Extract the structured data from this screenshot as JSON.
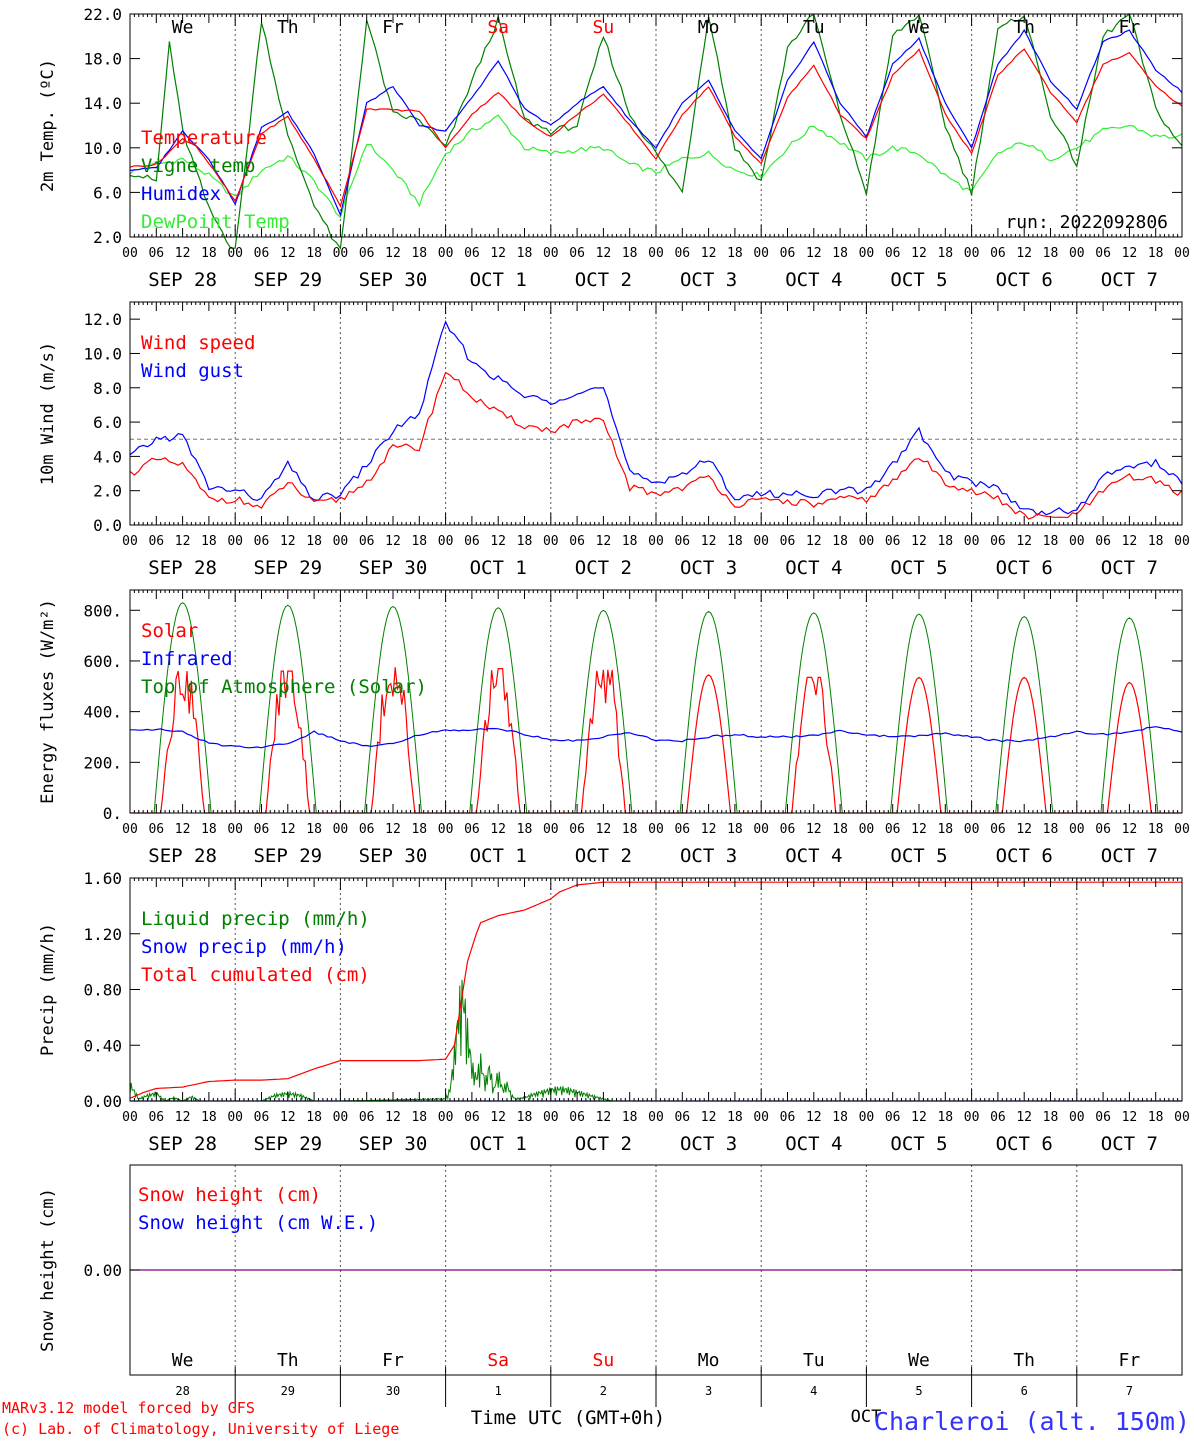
{
  "footer": {
    "model": "MARv3.12 model forced by GFS",
    "copyright": "(c) Lab. of Climatology, University of Liege",
    "xlabel": "Time UTC (GMT+0h)",
    "month": "OCT",
    "station": "Charleroi (alt. 150m)"
  },
  "run_label": "run: 2022092806",
  "days": [
    {
      "dow": "We",
      "date": "SEP 28",
      "num": "28",
      "weekend": false
    },
    {
      "dow": "Th",
      "date": "SEP 29",
      "num": "29",
      "weekend": false
    },
    {
      "dow": "Fr",
      "date": "SEP 30",
      "num": "30",
      "weekend": false
    },
    {
      "dow": "Sa",
      "date": "OCT 1",
      "num": "1",
      "weekend": true
    },
    {
      "dow": "Su",
      "date": "OCT 2",
      "num": "2",
      "weekend": true
    },
    {
      "dow": "Mo",
      "date": "OCT 3",
      "num": "3",
      "weekend": false
    },
    {
      "dow": "Tu",
      "date": "OCT 4",
      "num": "4",
      "weekend": false
    },
    {
      "dow": "We",
      "date": "OCT 5",
      "num": "5",
      "weekend": false
    },
    {
      "dow": "Th",
      "date": "OCT 6",
      "num": "6",
      "weekend": false
    },
    {
      "dow": "Fr",
      "date": "OCT 7",
      "num": "7",
      "weekend": false
    }
  ],
  "hour_ticks": [
    "00",
    "06",
    "12",
    "18"
  ],
  "colors": {
    "red": "#ff0000",
    "green": "#008000",
    "blue": "#0000ff",
    "lightgreen": "#33ee33",
    "purple": "#800080",
    "weekend": "#ff0000",
    "station": "#3333ff"
  },
  "chart_data": [
    {
      "type": "line",
      "ylabel": "2m Temp. (ºC)",
      "ylim": [
        2.0,
        22.0
      ],
      "yticks": [
        "2.0",
        "6.0",
        "10.0",
        "14.0",
        "18.0",
        "22.0"
      ],
      "show_day_names": true,
      "x_unit": "hours since SEP 28 00 UTC",
      "legend": [
        "Temperature",
        "Vigne temp",
        "Humidex",
        "DewPoint Temp"
      ],
      "series": [
        {
          "name": "Temperature",
          "color": "red",
          "x": [
            0,
            6,
            12,
            15,
            18,
            24,
            30,
            36,
            42,
            48,
            54,
            60,
            66,
            72,
            78,
            84,
            90,
            96,
            102,
            108,
            114,
            120,
            126,
            132,
            138,
            144,
            150,
            156,
            162,
            168,
            174,
            180,
            186,
            192,
            198,
            204,
            210,
            216,
            222,
            228,
            234,
            240
          ],
          "values": [
            8.3,
            8.5,
            10.8,
            10.2,
            8.6,
            5.2,
            11.3,
            12.8,
            9.0,
            4.8,
            13.5,
            13.4,
            13.3,
            10.0,
            13.0,
            15.0,
            12.5,
            11.0,
            13.0,
            14.8,
            12.0,
            9.0,
            13.0,
            15.5,
            11.0,
            8.6,
            14.5,
            17.4,
            13.0,
            10.8,
            16.5,
            18.8,
            13.0,
            9.5,
            16.5,
            18.9,
            15.0,
            12.3,
            17.5,
            18.5,
            15.5,
            13.7
          ]
        },
        {
          "name": "Vigne temp",
          "color": "green",
          "x": [
            0,
            6,
            9,
            12,
            15,
            18,
            24,
            30,
            36,
            42,
            48,
            54,
            60,
            66,
            72,
            78,
            84,
            90,
            96,
            102,
            108,
            114,
            120,
            126,
            132,
            138,
            144,
            150,
            156,
            162,
            168,
            174,
            180,
            186,
            192,
            198,
            204,
            210,
            216,
            222,
            228,
            234,
            240
          ],
          "values": [
            7.8,
            7.0,
            19.5,
            11.5,
            8.0,
            4.5,
            0.5,
            21.5,
            11.0,
            5.0,
            0.5,
            21.5,
            13.0,
            12.5,
            10.0,
            16.0,
            21.5,
            12.5,
            11.5,
            12.0,
            20.0,
            13.0,
            9.5,
            6.0,
            22.0,
            10.0,
            7.0,
            19.0,
            22.0,
            13.0,
            6.0,
            20.0,
            22.0,
            12.0,
            6.0,
            20.5,
            22.0,
            13.0,
            8.5,
            20.0,
            22.0,
            13.5,
            10.0
          ]
        },
        {
          "name": "Humidex",
          "color": "blue",
          "x": [
            0,
            6,
            12,
            18,
            24,
            30,
            36,
            42,
            48,
            54,
            60,
            66,
            72,
            78,
            84,
            90,
            96,
            102,
            108,
            114,
            120,
            126,
            132,
            138,
            144,
            150,
            156,
            162,
            168,
            174,
            180,
            186,
            192,
            198,
            204,
            210,
            216,
            222,
            228,
            234,
            240
          ],
          "values": [
            8.0,
            8.2,
            11.5,
            9.0,
            5.0,
            11.8,
            13.2,
            9.5,
            4.0,
            14.0,
            15.5,
            12.0,
            11.5,
            14.5,
            17.8,
            13.5,
            12.0,
            14.0,
            15.5,
            12.5,
            10.0,
            14.0,
            16.0,
            11.5,
            9.0,
            16.0,
            19.5,
            14.0,
            11.0,
            17.5,
            19.8,
            14.0,
            10.0,
            17.5,
            20.5,
            16.0,
            13.5,
            19.5,
            20.5,
            17.0,
            15.0
          ]
        },
        {
          "name": "DewPoint Temp",
          "color": "lightgreen",
          "x": [
            0,
            6,
            12,
            18,
            24,
            30,
            36,
            42,
            48,
            54,
            60,
            66,
            72,
            78,
            84,
            90,
            96,
            102,
            108,
            114,
            120,
            126,
            132,
            138,
            144,
            150,
            156,
            162,
            168,
            174,
            180,
            186,
            192,
            198,
            204,
            210,
            216,
            222,
            228,
            234,
            240
          ],
          "values": [
            7.8,
            8.5,
            9.0,
            7.5,
            5.5,
            8.0,
            9.2,
            7.0,
            3.8,
            10.5,
            8.0,
            5.0,
            9.5,
            11.5,
            12.8,
            10.0,
            9.5,
            9.8,
            10.0,
            8.5,
            7.8,
            9.0,
            9.5,
            8.0,
            7.5,
            10.0,
            12.0,
            10.5,
            9.0,
            10.0,
            9.5,
            7.5,
            6.0,
            9.5,
            10.5,
            9.0,
            10.0,
            11.5,
            12.0,
            11.0,
            11.0
          ]
        }
      ]
    },
    {
      "type": "line",
      "ylabel": "10m Wind (m/s)",
      "ylim": [
        0.0,
        13.0
      ],
      "yticks": [
        "0.0",
        "2.0",
        "4.0",
        "6.0",
        "8.0",
        "10.0",
        "12.0"
      ],
      "ref_line": 5.0,
      "show_day_names": false,
      "x_unit": "hours since SEP 28 00 UTC",
      "legend": [
        "Wind speed",
        "Wind gust"
      ],
      "series": [
        {
          "name": "Wind speed",
          "color": "red",
          "x": [
            0,
            6,
            12,
            18,
            24,
            30,
            36,
            42,
            48,
            54,
            60,
            66,
            72,
            78,
            84,
            90,
            96,
            102,
            108,
            114,
            120,
            126,
            132,
            138,
            144,
            150,
            156,
            162,
            168,
            174,
            180,
            186,
            192,
            198,
            204,
            210,
            216,
            222,
            228,
            234,
            240
          ],
          "values": [
            3.0,
            3.8,
            3.5,
            1.5,
            1.5,
            1.0,
            2.5,
            1.2,
            1.5,
            2.5,
            4.5,
            4.5,
            9.0,
            7.5,
            6.5,
            5.8,
            5.5,
            6.0,
            6.0,
            2.2,
            1.8,
            2.2,
            2.8,
            1.2,
            1.4,
            1.4,
            1.2,
            1.5,
            1.5,
            2.5,
            4.0,
            2.5,
            2.0,
            1.5,
            0.5,
            0.4,
            0.6,
            2.0,
            2.8,
            2.6,
            1.8
          ]
        },
        {
          "name": "Wind gust",
          "color": "blue",
          "x": [
            0,
            6,
            12,
            18,
            24,
            30,
            36,
            42,
            48,
            54,
            60,
            66,
            72,
            78,
            84,
            90,
            96,
            102,
            108,
            114,
            120,
            126,
            132,
            138,
            144,
            150,
            156,
            162,
            168,
            174,
            180,
            186,
            192,
            198,
            204,
            210,
            216,
            222,
            228,
            234,
            240
          ],
          "values": [
            4.0,
            5.0,
            5.2,
            2.2,
            2.0,
            1.5,
            3.5,
            1.5,
            1.8,
            3.5,
            5.5,
            6.5,
            11.8,
            9.5,
            8.5,
            7.5,
            7.2,
            7.8,
            8.0,
            3.0,
            2.5,
            3.0,
            3.8,
            1.6,
            1.8,
            1.8,
            1.8,
            2.0,
            2.0,
            3.5,
            5.5,
            3.0,
            2.5,
            2.2,
            0.8,
            0.8,
            0.8,
            2.8,
            3.5,
            3.6,
            2.5
          ]
        }
      ]
    },
    {
      "type": "line",
      "ylabel": "Energy fluxes (W/m²)",
      "ylim": [
        0,
        880
      ],
      "yticks": [
        "0.",
        "200.",
        "400.",
        "600.",
        "800."
      ],
      "show_day_names": false,
      "x_unit": "hours since SEP 28 00 UTC",
      "legend": [
        "Solar",
        "Infrared",
        "Top of Atmosphere (Solar)"
      ],
      "toa_peaks": [
        830,
        820,
        815,
        810,
        800,
        795,
        790,
        785,
        775,
        770
      ],
      "solar_peaks": [
        560,
        560,
        575,
        570,
        565,
        545,
        535,
        535,
        535,
        515
      ],
      "series": [
        {
          "name": "Infrared",
          "color": "blue",
          "x": [
            0,
            6,
            12,
            18,
            24,
            30,
            36,
            42,
            48,
            54,
            60,
            66,
            72,
            78,
            84,
            90,
            96,
            102,
            108,
            114,
            120,
            126,
            132,
            138,
            144,
            150,
            156,
            162,
            168,
            174,
            180,
            186,
            192,
            198,
            204,
            210,
            216,
            222,
            228,
            234,
            240
          ],
          "values": [
            330,
            330,
            320,
            275,
            262,
            260,
            275,
            320,
            285,
            265,
            275,
            310,
            325,
            330,
            335,
            310,
            290,
            285,
            300,
            320,
            285,
            285,
            300,
            310,
            300,
            300,
            305,
            325,
            310,
            300,
            305,
            315,
            300,
            285,
            285,
            300,
            320,
            310,
            320,
            340,
            320
          ]
        }
      ]
    },
    {
      "type": "line",
      "ylabel": "Precip (mm/h)",
      "ylim": [
        0.0,
        1.6
      ],
      "yticks": [
        "0.00",
        "0.40",
        "0.80",
        "1.20",
        "1.60"
      ],
      "show_day_names": false,
      "x_unit": "hours since SEP 28 00 UTC",
      "legend": [
        "Liquid precip (mm/h)",
        "Snow precip (mm/h)",
        "Total cumulated (cm)"
      ],
      "series": [
        {
          "name": "Total cumulated (cm)",
          "color": "red",
          "x": [
            0,
            3,
            6,
            12,
            18,
            24,
            30,
            36,
            42,
            48,
            54,
            60,
            66,
            72,
            74,
            75,
            77,
            79,
            80,
            84,
            90,
            96,
            98,
            102,
            108,
            114,
            240
          ],
          "values": [
            0.02,
            0.06,
            0.09,
            0.1,
            0.14,
            0.15,
            0.15,
            0.16,
            0.23,
            0.29,
            0.29,
            0.29,
            0.29,
            0.3,
            0.4,
            0.6,
            1.0,
            1.2,
            1.28,
            1.33,
            1.37,
            1.45,
            1.5,
            1.55,
            1.57,
            1.57,
            1.57
          ]
        },
        {
          "name": "Liquid precip (mm/h)",
          "color": "green",
          "x": [
            0,
            2,
            4,
            6,
            8,
            10,
            12,
            14,
            16,
            18,
            24,
            30,
            33,
            36,
            39,
            42,
            48,
            72,
            73,
            74,
            75,
            76,
            77,
            78,
            79,
            80,
            81,
            82,
            83,
            84,
            85,
            86,
            87,
            88,
            90,
            92,
            94,
            96,
            98,
            100,
            102,
            104,
            106,
            108,
            110,
            240
          ],
          "values": [
            0.15,
            0.02,
            0.05,
            0.07,
            0.0,
            0.03,
            0.0,
            0.04,
            0.0,
            0.0,
            0.0,
            0.0,
            0.05,
            0.07,
            0.05,
            0.0,
            0.0,
            0.02,
            0.1,
            0.4,
            0.8,
            0.95,
            0.6,
            0.3,
            0.2,
            0.35,
            0.15,
            0.3,
            0.1,
            0.25,
            0.1,
            0.15,
            0.05,
            0.02,
            0.03,
            0.06,
            0.08,
            0.1,
            0.11,
            0.1,
            0.08,
            0.06,
            0.04,
            0.02,
            0.0,
            0.0
          ]
        },
        {
          "name": "Snow precip (mm/h)",
          "color": "blue",
          "x": [
            0,
            240
          ],
          "values": [
            0.0,
            0.0
          ]
        }
      ]
    },
    {
      "type": "line",
      "ylabel": "Snow height (cm)",
      "ylim": [
        -1.0,
        1.0
      ],
      "yticks": [
        "0.00"
      ],
      "show_day_names": false,
      "x_unit": "hours since SEP 28 00 UTC",
      "legend": [
        "Snow height (cm)",
        "Snow height (cm W.E.)"
      ],
      "series": [
        {
          "name": "Snow height (cm)",
          "color": "purple",
          "x": [
            0,
            240
          ],
          "values": [
            0.0,
            0.0
          ]
        }
      ]
    }
  ]
}
